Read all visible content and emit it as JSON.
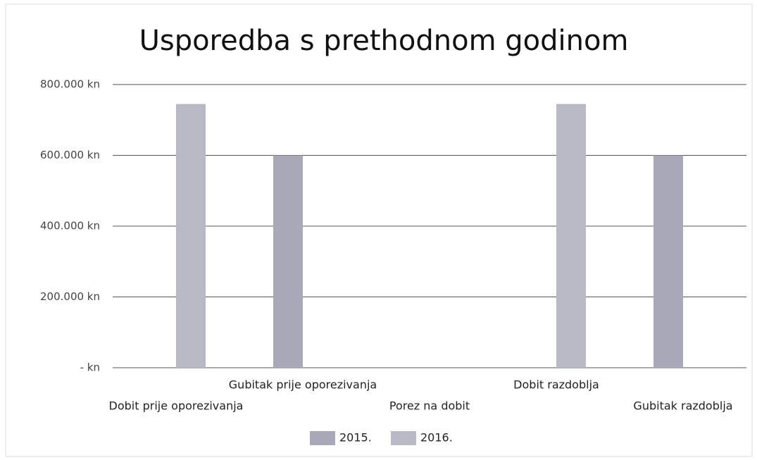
{
  "chart_data": {
    "type": "bar",
    "title": "Usporedba s prethodnom godinom",
    "categories": [
      "Dobit prije oporezivanja",
      "Gubitak prije oporezivanja",
      "Porez na dobit",
      "Dobit razdoblja",
      "Gubitak razdoblja"
    ],
    "series": [
      {
        "name": "2015.",
        "color": "#a8a8b8",
        "values": [
          0,
          600000,
          0,
          0,
          600000
        ]
      },
      {
        "name": "2016.",
        "color": "#b9b9c6",
        "values": [
          745000,
          0,
          0,
          745000,
          0
        ]
      }
    ],
    "ylim": [
      0,
      800000
    ],
    "yticks": [
      {
        "value": 0,
        "label": "- kn"
      },
      {
        "value": 200000,
        "label": "200.000 kn"
      },
      {
        "value": 400000,
        "label": "400.000 kn"
      },
      {
        "value": 600000,
        "label": "600.000 kn"
      },
      {
        "value": 800000,
        "label": "800.000 kn"
      }
    ],
    "grid": true,
    "legend": "bottom"
  }
}
